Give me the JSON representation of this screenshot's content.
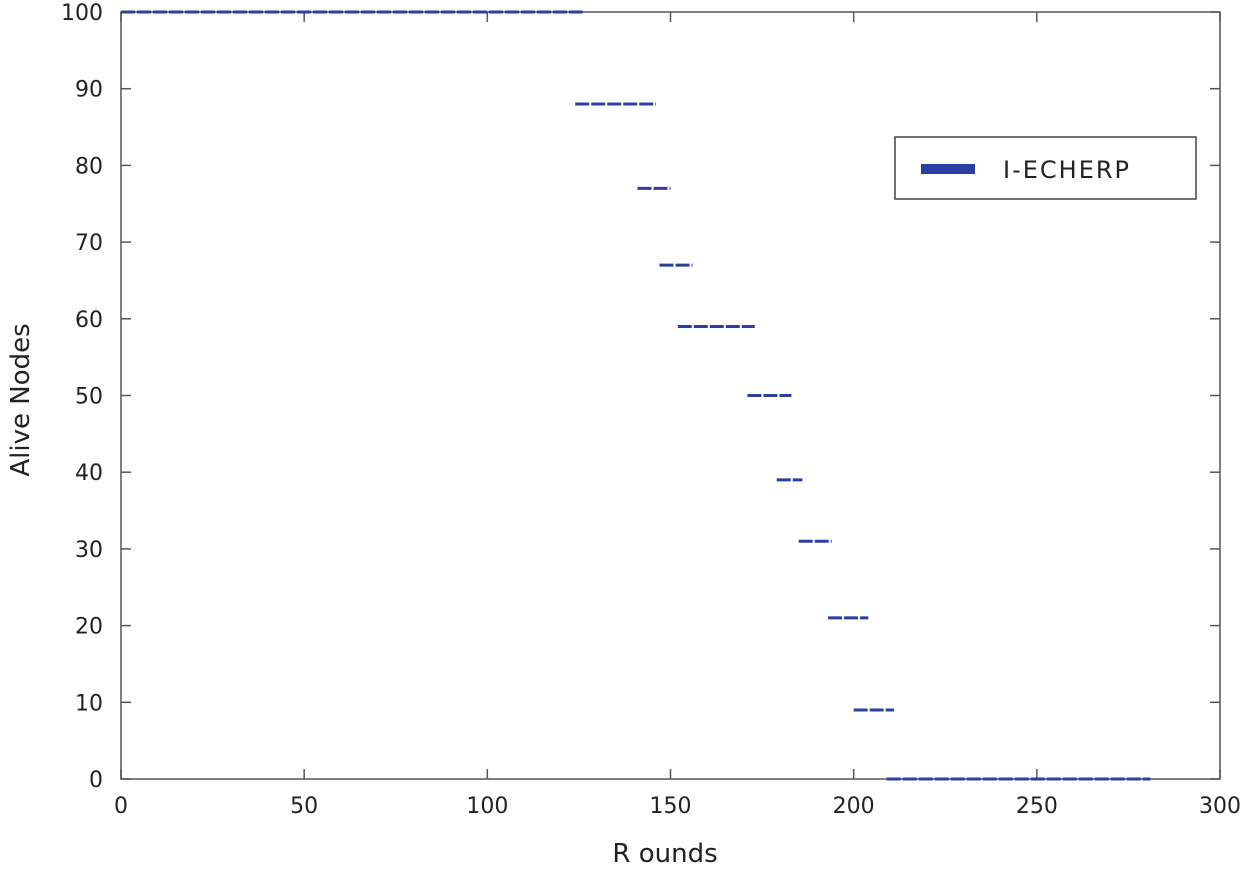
{
  "chart_data": {
    "type": "line",
    "title": "",
    "xlabel": "R ounds",
    "ylabel": "Alive Nodes",
    "xlim": [
      0,
      300
    ],
    "ylim": [
      0,
      100
    ],
    "xticks": [
      0,
      50,
      100,
      150,
      200,
      250,
      300
    ],
    "yticks": [
      0,
      10,
      20,
      30,
      40,
      50,
      60,
      70,
      80,
      90,
      100
    ],
    "grid": false,
    "legend_position": "top-right",
    "series": [
      {
        "name": "I-ECHERP",
        "color": "#2b3fa0",
        "style": "dashed-steps",
        "segments": [
          {
            "x_start": 0,
            "x_end": 126,
            "y": 100
          },
          {
            "x_start": 124,
            "x_end": 146,
            "y": 88
          },
          {
            "x_start": 141,
            "x_end": 150,
            "y": 77
          },
          {
            "x_start": 147,
            "x_end": 156,
            "y": 67
          },
          {
            "x_start": 152,
            "x_end": 173,
            "y": 59
          },
          {
            "x_start": 171,
            "x_end": 183,
            "y": 50
          },
          {
            "x_start": 179,
            "x_end": 186,
            "y": 39
          },
          {
            "x_start": 185,
            "x_end": 194,
            "y": 31
          },
          {
            "x_start": 193,
            "x_end": 204,
            "y": 21
          },
          {
            "x_start": 200,
            "x_end": 211,
            "y": 9
          },
          {
            "x_start": 209,
            "x_end": 281,
            "y": 0
          }
        ]
      }
    ]
  }
}
